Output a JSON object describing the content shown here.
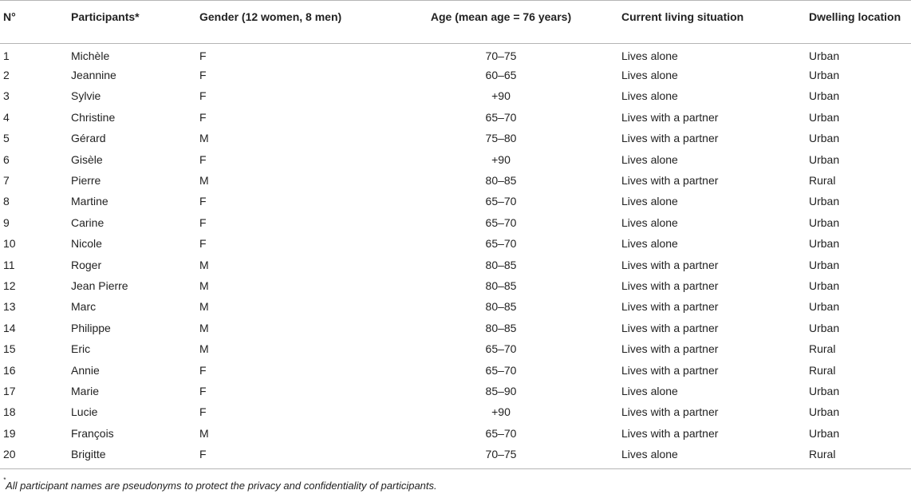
{
  "table": {
    "headers": {
      "no": "N°",
      "participants": "Participants*",
      "gender": "Gender (12 women, 8 men)",
      "age": "Age (mean age = 76 years)",
      "living": "Current living situation",
      "dwelling": "Dwelling location"
    },
    "rows": [
      {
        "no": "1",
        "name": "Michèle",
        "gender": "F",
        "age": "70–75",
        "living": "Lives alone",
        "dwelling": "Urban"
      },
      {
        "no": "2",
        "name": "Jeannine",
        "gender": "F",
        "age": "60–65",
        "living": "Lives alone",
        "dwelling": "Urban"
      },
      {
        "no": "3",
        "name": "Sylvie",
        "gender": "F",
        "age": "+90",
        "living": "Lives alone",
        "dwelling": "Urban"
      },
      {
        "no": "4",
        "name": "Christine",
        "gender": "F",
        "age": "65–70",
        "living": "Lives with a partner",
        "dwelling": "Urban"
      },
      {
        "no": "5",
        "name": "Gérard",
        "gender": "M",
        "age": "75–80",
        "living": "Lives with a partner",
        "dwelling": "Urban"
      },
      {
        "no": "6",
        "name": "Gisèle",
        "gender": "F",
        "age": "+90",
        "living": "Lives alone",
        "dwelling": "Urban"
      },
      {
        "no": "7",
        "name": "Pierre",
        "gender": "M",
        "age": "80–85",
        "living": "Lives with a partner",
        "dwelling": "Rural"
      },
      {
        "no": "8",
        "name": "Martine",
        "gender": "F",
        "age": "65–70",
        "living": "Lives alone",
        "dwelling": "Urban"
      },
      {
        "no": "9",
        "name": "Carine",
        "gender": "F",
        "age": "65–70",
        "living": "Lives alone",
        "dwelling": "Urban"
      },
      {
        "no": "10",
        "name": "Nicole",
        "gender": "F",
        "age": "65–70",
        "living": "Lives alone",
        "dwelling": "Urban"
      },
      {
        "no": "11",
        "name": "Roger",
        "gender": "M",
        "age": "80–85",
        "living": "Lives with a partner",
        "dwelling": "Urban"
      },
      {
        "no": "12",
        "name": "Jean Pierre",
        "gender": "M",
        "age": "80–85",
        "living": "Lives with a partner",
        "dwelling": "Urban"
      },
      {
        "no": "13",
        "name": "Marc",
        "gender": "M",
        "age": "80–85",
        "living": "Lives with a partner",
        "dwelling": "Urban"
      },
      {
        "no": "14",
        "name": "Philippe",
        "gender": "M",
        "age": "80–85",
        "living": "Lives with a partner",
        "dwelling": "Urban"
      },
      {
        "no": "15",
        "name": "Eric",
        "gender": "M",
        "age": "65–70",
        "living": "Lives with a partner",
        "dwelling": "Rural"
      },
      {
        "no": "16",
        "name": "Annie",
        "gender": "F",
        "age": "65–70",
        "living": "Lives with a partner",
        "dwelling": "Rural"
      },
      {
        "no": "17",
        "name": "Marie",
        "gender": "F",
        "age": "85–90",
        "living": "Lives alone",
        "dwelling": "Urban"
      },
      {
        "no": "18",
        "name": "Lucie",
        "gender": "F",
        "age": "+90",
        "living": "Lives with a partner",
        "dwelling": "Urban"
      },
      {
        "no": "19",
        "name": "François",
        "gender": "M",
        "age": "65–70",
        "living": "Lives with a partner",
        "dwelling": "Urban"
      },
      {
        "no": "20",
        "name": "Brigitte",
        "gender": "F",
        "age": "70–75",
        "living": "Lives alone",
        "dwelling": "Rural"
      }
    ]
  },
  "footnote": {
    "marker": "*",
    "text": "All participant names are pseudonyms to protect the privacy and confidentiality of participants."
  }
}
